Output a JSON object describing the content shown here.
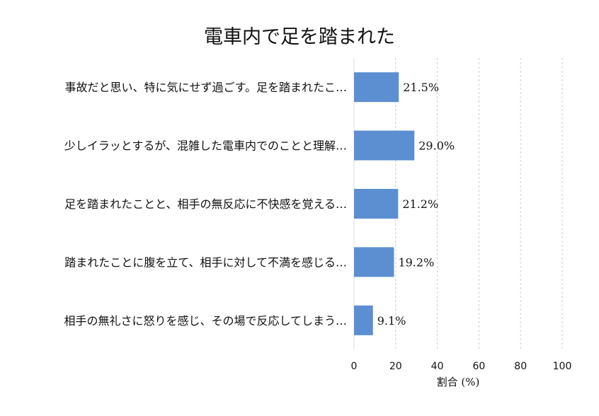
{
  "chart_data": {
    "type": "bar",
    "orientation": "horizontal",
    "title": "電車内で足を踏まれた",
    "xlabel": "割合 (%)",
    "ylabel": "",
    "xlim": [
      0,
      100
    ],
    "xticks": [
      0,
      20,
      40,
      60,
      80,
      100
    ],
    "grid": "x-dashed",
    "bar_color": "#5b8fd1",
    "categories": [
      "事故だと思い、特に気にせず過ごす。足を踏まれたこ…",
      "少しイラッとするが、混雑した電車内でのことと理解…",
      "足を踏まれたことと、相手の無反応に不快感を覚える…",
      "踏まれたことに腹を立て、相手に対して不満を感じる…",
      "相手の無礼さに怒りを感じ、その場で反応してしまう…"
    ],
    "values": [
      21.5,
      29.0,
      21.2,
      19.2,
      9.1
    ],
    "value_labels": [
      "21.5%",
      "29.0%",
      "21.2%",
      "19.2%",
      "9.1%"
    ]
  }
}
